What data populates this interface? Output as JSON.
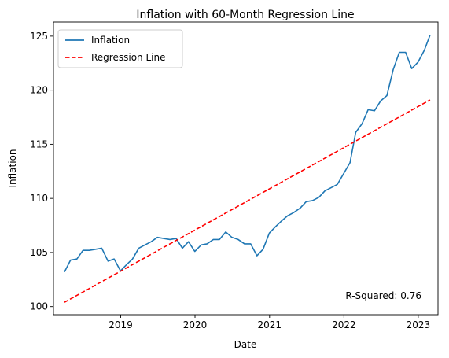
{
  "chart_data": {
    "type": "line",
    "title": "Inflation with 60-Month Regression Line",
    "xlabel": "Date",
    "ylabel": "Inflation",
    "xlim": [
      "2018-02-05",
      "2023-04-08"
    ],
    "ylim": [
      99.25,
      126.3
    ],
    "x_ticks": [
      {
        "date": "2019-01-01",
        "label": "2019"
      },
      {
        "date": "2020-01-01",
        "label": "2020"
      },
      {
        "date": "2021-01-01",
        "label": "2021"
      },
      {
        "date": "2022-01-01",
        "label": "2022"
      },
      {
        "date": "2023-01-01",
        "label": "2023"
      }
    ],
    "y_ticks": [
      100,
      105,
      110,
      115,
      120,
      125
    ],
    "series": [
      {
        "name": "Inflation",
        "color": "#1f77b4",
        "style": "solid",
        "x": [
          "2018-03-31",
          "2018-04-30",
          "2018-05-31",
          "2018-06-30",
          "2018-07-31",
          "2018-08-31",
          "2018-09-30",
          "2018-10-31",
          "2018-11-30",
          "2018-12-31",
          "2019-01-31",
          "2019-02-28",
          "2019-03-31",
          "2019-04-30",
          "2019-05-31",
          "2019-06-30",
          "2019-07-31",
          "2019-08-31",
          "2019-09-30",
          "2019-10-31",
          "2019-11-30",
          "2019-12-31",
          "2020-01-31",
          "2020-02-29",
          "2020-03-31",
          "2020-04-30",
          "2020-05-31",
          "2020-06-30",
          "2020-07-31",
          "2020-08-31",
          "2020-09-30",
          "2020-10-31",
          "2020-11-30",
          "2020-12-31",
          "2021-01-31",
          "2021-02-28",
          "2021-03-31",
          "2021-04-30",
          "2021-05-31",
          "2021-06-30",
          "2021-07-31",
          "2021-08-31",
          "2021-09-30",
          "2021-10-31",
          "2021-11-30",
          "2021-12-31",
          "2022-01-31",
          "2022-02-28",
          "2022-03-31",
          "2022-04-30",
          "2022-05-31",
          "2022-06-30",
          "2022-07-31",
          "2022-08-31",
          "2022-09-30",
          "2022-10-31",
          "2022-11-30",
          "2022-12-31",
          "2023-01-31",
          "2023-02-28"
        ],
        "values": [
          103.2,
          104.3,
          104.4,
          105.2,
          105.2,
          105.3,
          105.4,
          104.2,
          104.4,
          103.3,
          103.9,
          104.4,
          105.4,
          105.7,
          106.0,
          106.4,
          106.3,
          106.2,
          106.3,
          105.4,
          106.0,
          105.1,
          105.7,
          105.8,
          106.2,
          106.2,
          106.9,
          106.4,
          106.2,
          105.8,
          105.8,
          104.7,
          105.3,
          106.8,
          107.4,
          107.9,
          108.4,
          108.7,
          109.1,
          109.7,
          109.8,
          110.1,
          110.7,
          111.0,
          111.3,
          112.3,
          113.3,
          116.1,
          116.9,
          118.2,
          118.1,
          119.0,
          119.5,
          121.9,
          123.5,
          123.5,
          122.0,
          122.6,
          123.7,
          125.1
        ]
      },
      {
        "name": "Regression Line",
        "color": "#ff0000",
        "style": "dashed",
        "x": [
          "2018-03-31",
          "2023-02-28"
        ],
        "values": [
          100.4,
          119.1
        ]
      }
    ],
    "legend": {
      "placement": "upper-left",
      "items": [
        "Inflation",
        "Regression Line"
      ]
    },
    "annotation": "R-Squared: 0.76",
    "grid": false
  }
}
